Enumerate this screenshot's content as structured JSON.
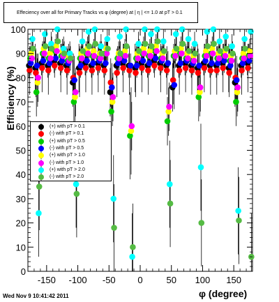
{
  "chart_data": {
    "type": "scatter",
    "title": "Effeciency over all for Primary Tracks vs φ (degree) at | η | <= 1.0 at pT > 0.1",
    "xlabel": "φ (degree)",
    "ylabel": "Efficiency (%)",
    "xlim": [
      -180,
      180
    ],
    "ylim": [
      0,
      100
    ],
    "xticks": [
      "-150",
      "-100",
      "-50",
      "0",
      "50",
      "100",
      "150"
    ],
    "yticks": [
      "0",
      "10",
      "20",
      "30",
      "40",
      "50",
      "60",
      "70",
      "80",
      "90",
      "100"
    ],
    "grid": false,
    "legend_position": "left",
    "series": [
      {
        "name": "(+) with pT > 0.1",
        "color": "#000000",
        "x": [
          -175,
          -165,
          -155,
          -145,
          -135,
          -125,
          -115,
          -105,
          -95,
          -85,
          -75,
          -65,
          -55,
          -45,
          -35,
          -25,
          -15,
          -5,
          5,
          15,
          25,
          35,
          45,
          55,
          65,
          75,
          85,
          95,
          105,
          115,
          125,
          135,
          145,
          155,
          165,
          175
        ],
        "values": [
          85,
          84,
          86,
          85,
          87,
          86,
          85,
          78,
          84,
          86,
          85,
          86,
          85,
          74,
          85,
          86,
          85,
          84,
          86,
          85,
          87,
          86,
          85,
          76,
          85,
          86,
          85,
          84,
          86,
          85,
          85,
          86,
          84,
          78,
          85,
          86
        ]
      },
      {
        "name": "(-) with pT > 0.1",
        "color": "#ff0000",
        "x": [
          -175,
          -165,
          -155,
          -145,
          -135,
          -125,
          -115,
          -105,
          -95,
          -85,
          -75,
          -65,
          -55,
          -45,
          -35,
          -25,
          -15,
          -5,
          5,
          15,
          25,
          35,
          45,
          55,
          65,
          75,
          85,
          95,
          105,
          115,
          125,
          135,
          145,
          155,
          165,
          175
        ],
        "values": [
          83,
          82,
          84,
          83,
          85,
          84,
          83,
          80,
          82,
          84,
          83,
          84,
          83,
          78,
          82,
          84,
          83,
          82,
          84,
          83,
          85,
          84,
          83,
          79,
          83,
          84,
          83,
          82,
          84,
          83,
          83,
          84,
          82,
          80,
          83,
          84
        ]
      },
      {
        "name": "(+) with pT > 0.5",
        "color": "#00cc00",
        "x": [
          -175,
          -165,
          -155,
          -145,
          -135,
          -125,
          -115,
          -105,
          -95,
          -85,
          -75,
          -65,
          -55,
          -45,
          -35,
          -25,
          -15,
          -5,
          5,
          15,
          25,
          35,
          45,
          55,
          65,
          75,
          85,
          95,
          105,
          115,
          125,
          135,
          145,
          155,
          165,
          175
        ],
        "values": [
          88,
          74,
          90,
          88,
          91,
          89,
          87,
          70,
          88,
          90,
          89,
          88,
          90,
          66,
          88,
          89,
          56,
          88,
          90,
          89,
          91,
          88,
          62,
          89,
          90,
          88,
          87,
          72,
          89,
          90,
          88,
          89,
          87,
          70,
          88,
          89
        ]
      },
      {
        "name": "(-) with pT > 0.5",
        "color": "#0000ff",
        "x": [
          -175,
          -165,
          -155,
          -145,
          -135,
          -125,
          -115,
          -105,
          -95,
          -85,
          -75,
          -65,
          -55,
          -45,
          -35,
          -25,
          -15,
          -5,
          5,
          15,
          25,
          35,
          45,
          55,
          65,
          75,
          85,
          95,
          105,
          115,
          125,
          135,
          145,
          155,
          165,
          175
        ],
        "values": [
          86,
          85,
          87,
          86,
          88,
          87,
          86,
          79,
          85,
          87,
          86,
          87,
          86,
          76,
          86,
          87,
          85,
          85,
          87,
          86,
          88,
          87,
          86,
          77,
          86,
          87,
          86,
          85,
          87,
          86,
          86,
          87,
          85,
          79,
          86,
          87
        ]
      },
      {
        "name": "(+) with pT > 1.0",
        "color": "#ffff00",
        "x": [
          -175,
          -165,
          -155,
          -145,
          -135,
          -125,
          -115,
          -105,
          -95,
          -85,
          -75,
          -65,
          -55,
          -45,
          -35,
          -25,
          -15,
          -5,
          5,
          15,
          25,
          35,
          45,
          55,
          65,
          75,
          85,
          95,
          105,
          115,
          125,
          135,
          145,
          155,
          165,
          175
        ],
        "values": [
          90,
          78,
          92,
          90,
          93,
          91,
          89,
          72,
          90,
          92,
          91,
          90,
          92,
          70,
          90,
          91,
          58,
          90,
          92,
          91,
          93,
          90,
          66,
          91,
          92,
          90,
          89,
          74,
          91,
          92,
          90,
          91,
          89,
          74,
          90,
          91
        ]
      },
      {
        "name": "(-) with pT > 1.0",
        "color": "#ff00ff",
        "x": [
          -175,
          -165,
          -155,
          -145,
          -135,
          -125,
          -115,
          -105,
          -95,
          -85,
          -75,
          -65,
          -55,
          -45,
          -35,
          -25,
          -15,
          -5,
          5,
          15,
          25,
          35,
          45,
          55,
          65,
          75,
          85,
          95,
          105,
          115,
          125,
          135,
          145,
          155,
          165,
          175
        ],
        "values": [
          88,
          80,
          90,
          88,
          91,
          89,
          87,
          74,
          88,
          90,
          89,
          88,
          90,
          72,
          88,
          89,
          60,
          88,
          90,
          89,
          91,
          88,
          68,
          89,
          90,
          88,
          87,
          76,
          89,
          90,
          88,
          89,
          87,
          76,
          88,
          89
        ]
      },
      {
        "name": "(+) with pT > 2.0",
        "color": "#00ffff",
        "x": [
          -175,
          -165,
          -155,
          -145,
          -135,
          -125,
          -115,
          -105,
          -95,
          -85,
          -75,
          -65,
          -55,
          -45,
          -35,
          -25,
          -15,
          -5,
          5,
          15,
          25,
          35,
          45,
          55,
          65,
          75,
          85,
          95,
          105,
          115,
          125,
          135,
          145,
          155,
          165,
          175
        ],
        "values": [
          96,
          24,
          98,
          94,
          100,
          92,
          90,
          36,
          95,
          99,
          100,
          93,
          96,
          30,
          97,
          100,
          6,
          94,
          100,
          98,
          100,
          95,
          36,
          98,
          100,
          96,
          94,
          43,
          99,
          100,
          95,
          97,
          93,
          25,
          96,
          99
        ]
      },
      {
        "name": "(-) with pT > 2.0",
        "color": "#55bb44",
        "x": [
          -175,
          -165,
          -155,
          -145,
          -135,
          -125,
          -115,
          -105,
          -95,
          -85,
          -75,
          -65,
          -55,
          -45,
          -35,
          -25,
          -15,
          -5,
          5,
          15,
          25,
          35,
          45,
          55,
          65,
          75,
          85,
          95,
          105,
          115,
          125,
          135,
          145,
          155,
          165,
          175
        ],
        "values": [
          92,
          35,
          93,
          92,
          95,
          90,
          88,
          32,
          91,
          93,
          94,
          90,
          92,
          18,
          90,
          93,
          10,
          91,
          94,
          93,
          95,
          91,
          28,
          92,
          94,
          91,
          90,
          20,
          93,
          94,
          91,
          92,
          90,
          21,
          92,
          6
        ]
      }
    ]
  },
  "timestamp": "Wed Nov  9 10:41:42 2011"
}
